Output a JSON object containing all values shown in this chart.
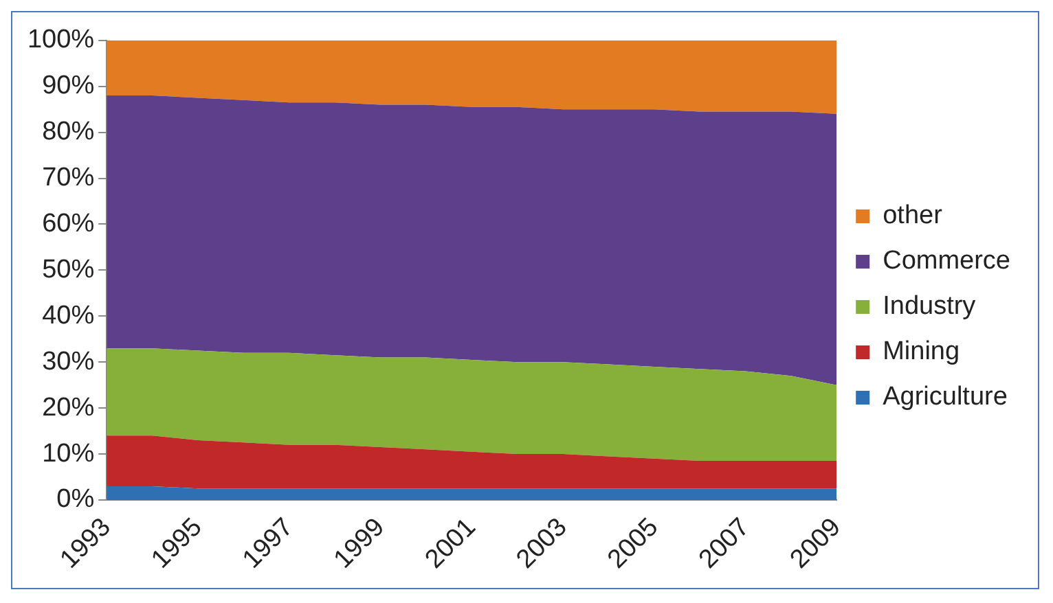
{
  "chart_data": {
    "type": "area",
    "stacked": true,
    "categories": [
      "1993",
      null,
      "1995",
      null,
      "1997",
      null,
      "1999",
      null,
      "2001",
      null,
      "2003",
      null,
      "2005",
      null,
      "2007",
      null,
      "2009"
    ],
    "series": [
      {
        "name": "Agriculture",
        "color": "#2f70b4",
        "values": [
          3,
          3,
          2.5,
          2.5,
          2.5,
          2.5,
          2.5,
          2.5,
          2.5,
          2.5,
          2.5,
          2.5,
          2.5,
          2.5,
          2.5,
          2.5,
          2.5
        ]
      },
      {
        "name": "Mining",
        "color": "#c0282a",
        "values": [
          11,
          11,
          10.5,
          10,
          9.5,
          9.5,
          9,
          8.5,
          8,
          7.5,
          7.5,
          7,
          6.5,
          6,
          6,
          6,
          6
        ]
      },
      {
        "name": "Industry",
        "color": "#86b03a",
        "values": [
          19,
          19,
          19.5,
          19.5,
          20,
          19.5,
          19.5,
          20,
          20,
          20,
          20,
          20,
          20,
          20,
          19.5,
          18.5,
          16.5
        ]
      },
      {
        "name": "Commerce",
        "color": "#5e3f8c",
        "values": [
          55,
          55,
          55,
          55,
          54.5,
          55,
          55,
          55,
          55,
          55.5,
          55,
          55.5,
          56,
          56,
          56.5,
          57.5,
          59
        ]
      },
      {
        "name": "other",
        "color": "#e27b22",
        "values": [
          12,
          12,
          12.5,
          13,
          13.5,
          13.5,
          14,
          14,
          14.5,
          14.5,
          15,
          15,
          15,
          15.5,
          15.5,
          15.5,
          16
        ]
      }
    ],
    "ylim": [
      0,
      100
    ],
    "yticks": [
      {
        "value": 0,
        "label": "0%"
      },
      {
        "value": 10,
        "label": "10%"
      },
      {
        "value": 20,
        "label": "20%"
      },
      {
        "value": 30,
        "label": "30%"
      },
      {
        "value": 40,
        "label": "40%"
      },
      {
        "value": 50,
        "label": "50%"
      },
      {
        "value": 60,
        "label": "60%"
      },
      {
        "value": 70,
        "label": "70%"
      },
      {
        "value": 80,
        "label": "80%"
      },
      {
        "value": 90,
        "label": "90%"
      },
      {
        "value": 100,
        "label": "100%"
      }
    ],
    "grid": false,
    "legend": "right"
  }
}
